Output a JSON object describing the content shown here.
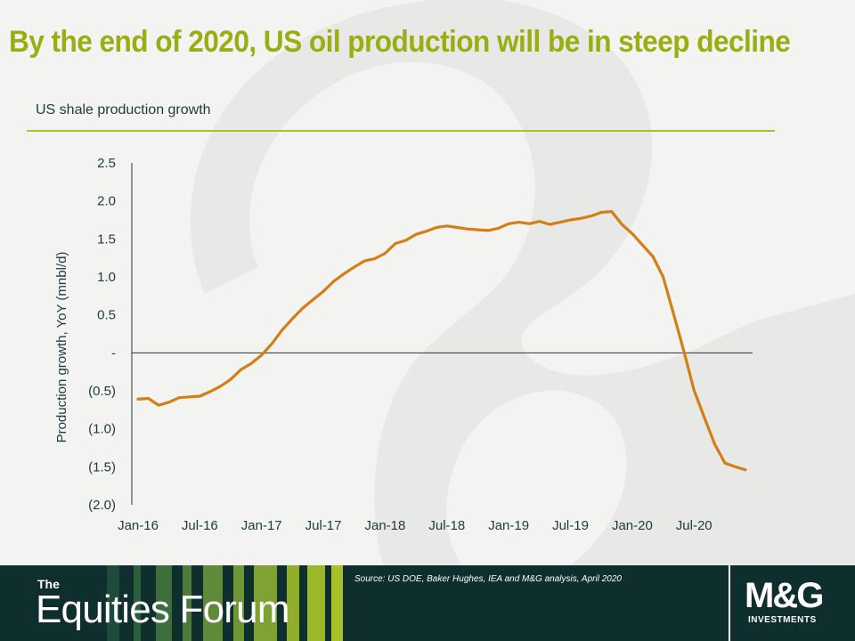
{
  "slide": {
    "title": "By the end of 2020, US oil production will be in steep decline",
    "subtitle": "US shale production growth"
  },
  "footer": {
    "brand_small": "The",
    "brand_large": "Equities Forum",
    "source": "Source: US DOE, Baker Hughes, IEA and M&G analysis, April 2020",
    "logo_main": "M&G",
    "logo_sub": "INVESTMENTS"
  },
  "colors": {
    "title": "#9aae14",
    "line": "#d47f14",
    "rule": "#b5bd2a",
    "footer": "#0f2f2e",
    "axis_text": "#1f3a3d"
  },
  "icons": [
    "swirl-background-icon",
    "stripes-pattern-icon"
  ],
  "chart_data": {
    "type": "line",
    "title": "US shale production growth",
    "xlabel": "",
    "ylabel": "Production growth, YoY (mnbl/d)",
    "ylim": [
      -2.0,
      2.5
    ],
    "yticks": [
      2.5,
      2.0,
      1.5,
      1.0,
      0.5,
      0.0,
      -0.5,
      -1.0,
      -1.5,
      -2.0
    ],
    "ytick_labels": [
      "2.5",
      "2.0",
      "1.5",
      "1.0",
      "0.5",
      "-",
      "(0.5)",
      "(1.0)",
      "(1.5)",
      "(2.0)"
    ],
    "xtick_labels": [
      "Jan-16",
      "Jul-16",
      "Jan-17",
      "Jul-17",
      "Jan-18",
      "Jul-18",
      "Jan-19",
      "Jul-19",
      "Jan-20",
      "Jul-20"
    ],
    "x": [
      "Jan-16",
      "Feb-16",
      "Mar-16",
      "Apr-16",
      "May-16",
      "Jun-16",
      "Jul-16",
      "Aug-16",
      "Sep-16",
      "Oct-16",
      "Nov-16",
      "Dec-16",
      "Jan-17",
      "Feb-17",
      "Mar-17",
      "Apr-17",
      "May-17",
      "Jun-17",
      "Jul-17",
      "Aug-17",
      "Sep-17",
      "Oct-17",
      "Nov-17",
      "Dec-17",
      "Jan-18",
      "Feb-18",
      "Mar-18",
      "Apr-18",
      "May-18",
      "Jun-18",
      "Jul-18",
      "Aug-18",
      "Sep-18",
      "Oct-18",
      "Nov-18",
      "Dec-18",
      "Jan-19",
      "Feb-19",
      "Mar-19",
      "Apr-19",
      "May-19",
      "Jun-19",
      "Jul-19",
      "Aug-19",
      "Sep-19",
      "Oct-19",
      "Nov-19",
      "Dec-19",
      "Jan-20",
      "Feb-20",
      "Mar-20",
      "Apr-20",
      "May-20",
      "Jun-20",
      "Jul-20",
      "Aug-20",
      "Sep-20",
      "Oct-20",
      "Nov-20",
      "Dec-20"
    ],
    "series": [
      {
        "values": [
          -0.61,
          -0.6,
          -0.69,
          -0.65,
          -0.59,
          -0.58,
          -0.57,
          -0.51,
          -0.44,
          -0.35,
          -0.22,
          -0.14,
          -0.03,
          0.12,
          0.3,
          0.45,
          0.59,
          0.7,
          0.81,
          0.94,
          1.04,
          1.13,
          1.21,
          1.24,
          1.31,
          1.44,
          1.48,
          1.56,
          1.6,
          1.65,
          1.67,
          1.65,
          1.63,
          1.62,
          1.61,
          1.64,
          1.7,
          1.72,
          1.7,
          1.73,
          1.69,
          1.72,
          1.75,
          1.77,
          1.8,
          1.85,
          1.86,
          1.69,
          1.57,
          1.42,
          1.27,
          1.0,
          0.52,
          0.03,
          -0.49,
          -0.85,
          -1.2,
          -1.45,
          -1.5,
          -1.54
        ]
      }
    ],
    "grid": false,
    "legend": "none"
  }
}
